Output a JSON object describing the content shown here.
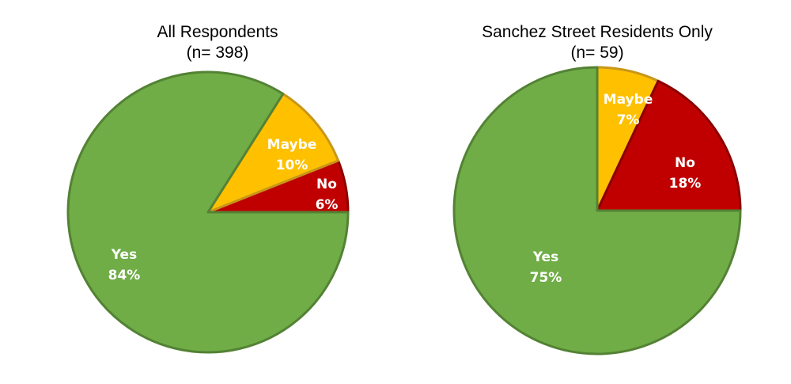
{
  "chart_data": [
    {
      "type": "pie",
      "title": "All Respondents",
      "subtitle": "(n= 398)",
      "slices": [
        {
          "label": "Maybe",
          "value": 10,
          "value_label": "10%",
          "color": "#FFC000",
          "border": "#C9961A"
        },
        {
          "label": "No",
          "value": 6,
          "value_label": "6%",
          "color": "#C00000",
          "border": "#8B0000"
        },
        {
          "label": "Yes",
          "value": 84,
          "value_label": "84%",
          "color": "#70AD47",
          "border": "#548235"
        }
      ]
    },
    {
      "type": "pie",
      "title": "Sanchez Street Residents Only",
      "subtitle": "(n= 59)",
      "slices": [
        {
          "label": "Maybe",
          "value": 7,
          "value_label": "7%",
          "color": "#FFC000",
          "border": "#C9961A"
        },
        {
          "label": "No",
          "value": 18,
          "value_label": "18%",
          "color": "#C00000",
          "border": "#8B0000"
        },
        {
          "label": "Yes",
          "value": 75,
          "value_label": "75%",
          "color": "#70AD47",
          "border": "#548235"
        }
      ]
    }
  ]
}
